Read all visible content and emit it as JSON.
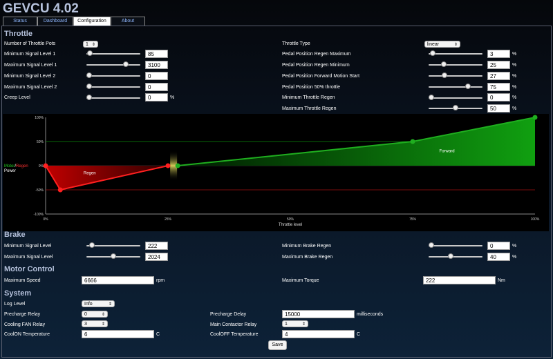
{
  "app": {
    "title": "GEVCU 4.02"
  },
  "tabs": [
    "Status",
    "Dashboard",
    "Configuration",
    "About"
  ],
  "throttle": {
    "title": "Throttle",
    "num_pots": {
      "label": "Number of Throttle Pots",
      "value": "1"
    },
    "min1": {
      "label": "Minimum Signal Level 1",
      "value": "85",
      "level": 0.02
    },
    "max1": {
      "label": "Maximum Signal Level 1",
      "value": "3100",
      "level": 0.75
    },
    "min2": {
      "label": "Minimum Signal Level 2",
      "value": "0",
      "level": 0
    },
    "max2": {
      "label": "Maximum Signal Level 2",
      "value": "0",
      "level": 0
    },
    "creep": {
      "label": "Creep Level",
      "value": "0",
      "level": 0,
      "unit": "%"
    },
    "type": {
      "label": "Throttle Type",
      "value": "linear"
    },
    "regen_max": {
      "label": "Pedal Position Regen Maximum",
      "value": "3",
      "level": 0.03,
      "unit": "%"
    },
    "regen_min": {
      "label": "Pedal Position Regen Minimum",
      "value": "25",
      "level": 0.25,
      "unit": "%"
    },
    "fwd_start": {
      "label": "Pedal Position Forward Motion Start",
      "value": "27",
      "level": 0.27,
      "unit": "%"
    },
    "half": {
      "label": "Pedal Position 50% throttle",
      "value": "75",
      "level": 0.75,
      "unit": "%"
    },
    "min_regen": {
      "label": "Minimum Throttle Regen",
      "value": "0",
      "level": 0,
      "unit": "%"
    },
    "max_regen": {
      "label": "Maximum Throttle Regen",
      "value": "50",
      "level": 0.5,
      "unit": "%"
    }
  },
  "chart_data": {
    "type": "area",
    "y_ticks": [
      "100%",
      "50%",
      "0%",
      "-50%",
      "-100%"
    ],
    "x_ticks": [
      "0%",
      "25%",
      "50%",
      "75%",
      "100%"
    ],
    "xlabel": "Throttle level",
    "ylabel_motor": "Motor",
    "ylabel_sep": "/",
    "ylabel_regen": "Regen",
    "ylabel_power": "Power",
    "regen_label": "Regen",
    "forward_label": "Forward",
    "xlim": [
      0,
      100
    ],
    "ylim": [
      -100,
      100
    ],
    "regen_points": [
      [
        0,
        0
      ],
      [
        3,
        -50
      ],
      [
        25,
        0
      ]
    ],
    "forward_points": [
      [
        27,
        0
      ],
      [
        75,
        50
      ],
      [
        100,
        100
      ]
    ],
    "colors": {
      "regen": "#ff2020",
      "forward": "#1fae1f",
      "grid_pos": "#0a8a0a",
      "grid_neg": "#a01010"
    }
  },
  "brake": {
    "title": "Brake",
    "min": {
      "label": "Minimum Signal Level",
      "value": "222",
      "level": 0.05
    },
    "max": {
      "label": "Maximum Signal Level",
      "value": "2024",
      "level": 0.5
    },
    "min_regen": {
      "label": "Minimum Brake Regen",
      "value": "0",
      "level": 0,
      "unit": "%"
    },
    "max_regen": {
      "label": "Maximum Brake Regen",
      "value": "40",
      "level": 0.4,
      "unit": "%"
    }
  },
  "motor": {
    "title": "Motor Control",
    "speed": {
      "label": "Maximum Speed",
      "value": "6666",
      "unit": "rpm"
    },
    "torque": {
      "label": "Maximum Torque",
      "value": "222",
      "unit": "Nm"
    }
  },
  "system": {
    "title": "System",
    "log": {
      "label": "Log Level",
      "value": "Info"
    },
    "precharge_relay": {
      "label": "Precharge Relay",
      "value": "0"
    },
    "fan_relay": {
      "label": "Cooling FAN Relay",
      "value": "3"
    },
    "coolon": {
      "label": "CoolON Temperature",
      "value": "6",
      "unit": "C"
    },
    "precharge_delay": {
      "label": "Precharge Delay",
      "value": "15000",
      "unit": "milliseconds"
    },
    "main_relay": {
      "label": "Main Contactor Relay",
      "value": "1"
    },
    "cooloff": {
      "label": "CoolOFF Temperature",
      "value": "4",
      "unit": "C"
    },
    "save": "Save"
  }
}
